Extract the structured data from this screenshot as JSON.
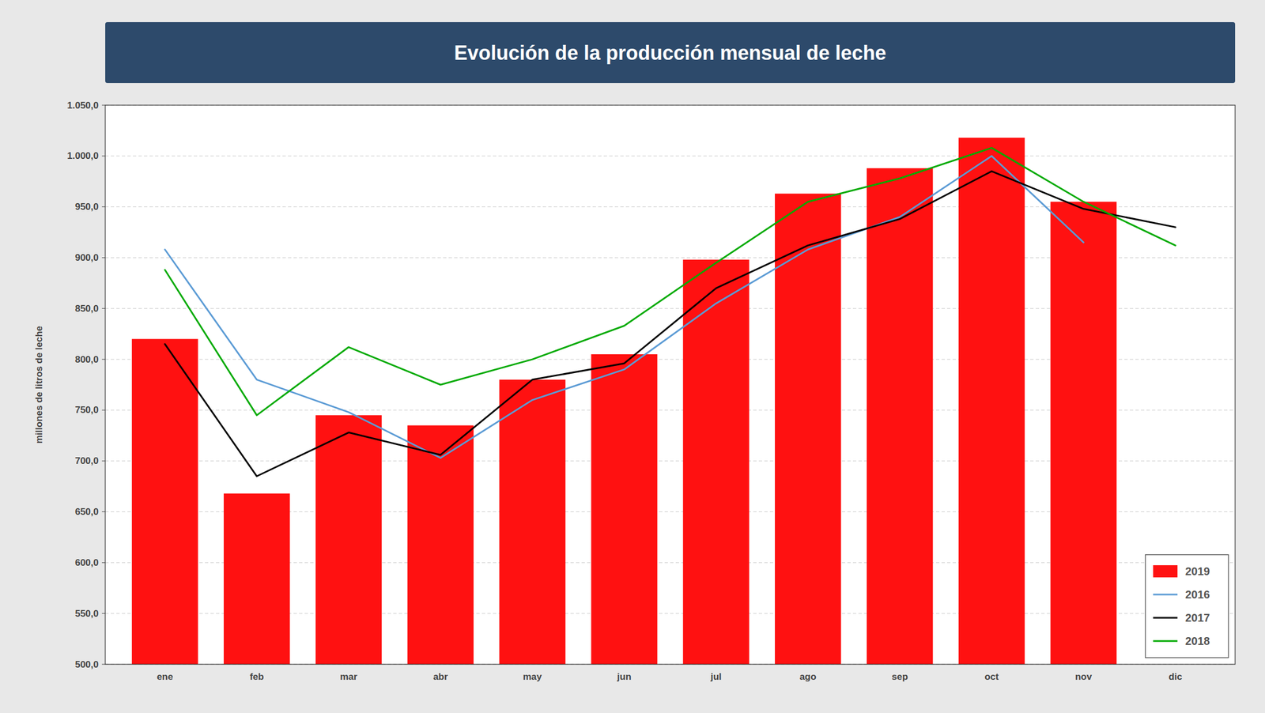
{
  "chart_data": {
    "type": "bar",
    "title": "Evolución de la producción mensual de leche",
    "y_label": "millones de litros de leche",
    "categories": [
      "ene",
      "feb",
      "mar",
      "abr",
      "may",
      "jun",
      "jul",
      "ago",
      "sep",
      "oct",
      "nov",
      "dic"
    ],
    "series": [
      {
        "name": "2019",
        "type": "bar",
        "color": "#ff1111",
        "values": [
          820,
          668,
          745,
          735,
          780,
          805,
          898,
          963,
          988,
          1018,
          955,
          null
        ]
      },
      {
        "name": "2016",
        "type": "line",
        "color": "#5b9bd5",
        "values": [
          908,
          780,
          748,
          703,
          760,
          790,
          855,
          908,
          940,
          1000,
          915,
          null
        ]
      },
      {
        "name": "2017",
        "type": "line",
        "color": "#000000",
        "values": [
          815,
          685,
          728,
          706,
          780,
          796,
          870,
          912,
          938,
          985,
          948,
          930
        ]
      },
      {
        "name": "2018",
        "type": "line",
        "color": "#00aa00",
        "values": [
          888,
          745,
          812,
          775,
          800,
          833,
          895,
          955,
          978,
          1008,
          955,
          912
        ]
      }
    ],
    "ylim": [
      500,
      1050
    ],
    "yticks": [
      {
        "value": 500,
        "label": "500,0"
      },
      {
        "value": 550,
        "label": "550,0"
      },
      {
        "value": 600,
        "label": "600,0"
      },
      {
        "value": 650,
        "label": "650,0"
      },
      {
        "value": 700,
        "label": "700,0"
      },
      {
        "value": 750,
        "label": "750,0"
      },
      {
        "value": 800,
        "label": "800,0"
      },
      {
        "value": 850,
        "label": "850,0"
      },
      {
        "value": 900,
        "label": "900,0"
      },
      {
        "value": 950,
        "label": "950,0"
      },
      {
        "value": 1000,
        "label": "1.000,0"
      },
      {
        "value": 1050,
        "label": "1.050,0"
      }
    ],
    "grid": true,
    "legend": "lower right"
  }
}
